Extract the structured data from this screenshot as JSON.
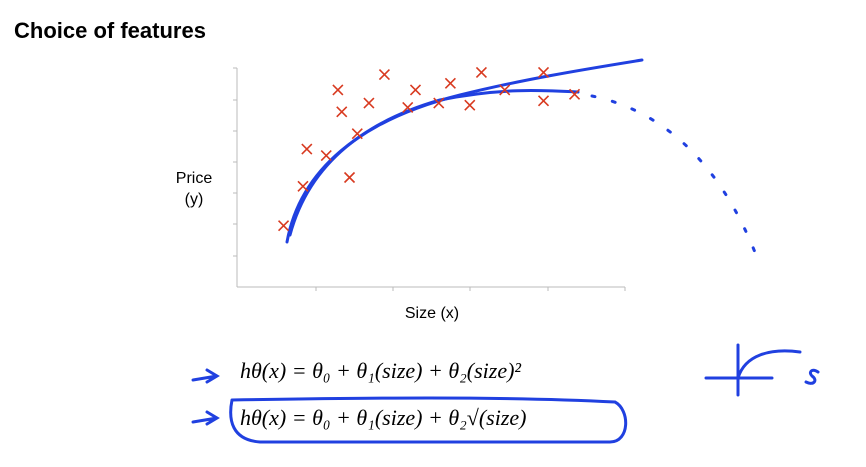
{
  "title": "Choice of features",
  "chart_data": {
    "type": "scatter",
    "xlabel": "Size (x)",
    "ylabel": [
      "Price",
      "(y)"
    ],
    "x": [
      1.2,
      1.7,
      1.8,
      2.3,
      2.9,
      2.6,
      2.7,
      3.1,
      3.4,
      3.8,
      4.4,
      4.6,
      5.2,
      5.5,
      6.0,
      6.3,
      6.9,
      7.9,
      7.9,
      8.7
    ],
    "y": [
      2.8,
      4.6,
      6.3,
      6.0,
      5.0,
      9.0,
      8.0,
      7.0,
      8.4,
      9.7,
      8.2,
      9.0,
      8.4,
      9.3,
      8.3,
      9.8,
      9.0,
      9.8,
      8.5,
      8.8
    ],
    "color": "#d83a20",
    "xlim": [
      0,
      10
    ],
    "ylim": [
      0,
      10
    ]
  },
  "formulas": [
    "hθ(x) = θ₀ + θ₁(size) + θ₂(size)²",
    "hθ(x) = θ₀ + θ₁(size) + θ₂√(size)"
  ]
}
